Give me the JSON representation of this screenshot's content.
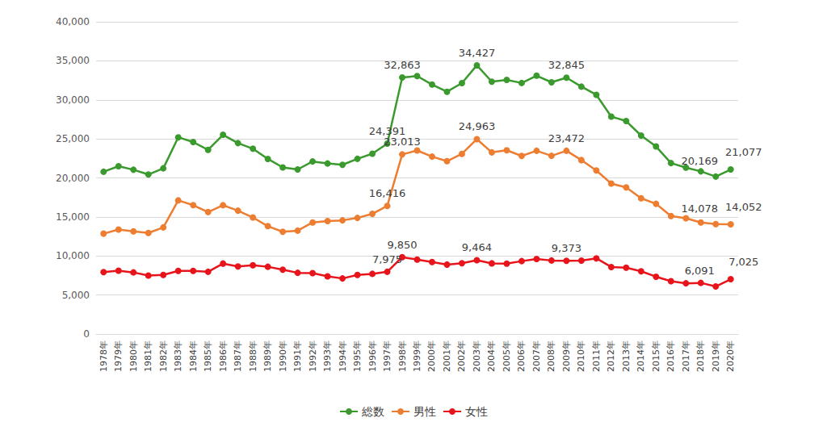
{
  "chart_data": {
    "type": "line",
    "categories": [
      "1978年",
      "1979年",
      "1980年",
      "1981年",
      "1982年",
      "1983年",
      "1984年",
      "1985年",
      "1986年",
      "1987年",
      "1988年",
      "1989年",
      "1990年",
      "1991年",
      "1992年",
      "1993年",
      "1994年",
      "1995年",
      "1996年",
      "1997年",
      "1998年",
      "1999年",
      "2000年",
      "2001年",
      "2002年",
      "2003年",
      "2004年",
      "2005年",
      "2006年",
      "2007年",
      "2008年",
      "2009年",
      "2010年",
      "2011年",
      "2012年",
      "2013年",
      "2014年",
      "2015年",
      "2016年",
      "2017年",
      "2018年",
      "2019年",
      "2020年"
    ],
    "series": [
      {
        "name": "総数",
        "color": "#3a9a2e",
        "values": [
          20788,
          21503,
          21048,
          20434,
          21228,
          25202,
          24596,
          23599,
          25524,
          24460,
          23742,
          22436,
          21346,
          21084,
          22104,
          21851,
          21679,
          22445,
          23104,
          24391,
          32863,
          33048,
          31957,
          31042,
          32143,
          34427,
          32325,
          32552,
          32155,
          33093,
          32249,
          32845,
          31690,
          30651,
          27858,
          27283,
          25427,
          24025,
          21897,
          21321,
          20840,
          20169,
          21077
        ],
        "value_labels": [
          null,
          null,
          null,
          null,
          null,
          null,
          null,
          null,
          null,
          null,
          null,
          null,
          null,
          null,
          null,
          null,
          null,
          null,
          null,
          "24,391",
          "32,863",
          null,
          null,
          null,
          null,
          "34,427",
          null,
          null,
          null,
          null,
          null,
          "32,845",
          null,
          null,
          null,
          null,
          null,
          null,
          null,
          null,
          null,
          "20,169",
          "21,077"
        ]
      },
      {
        "name": "男性",
        "color": "#ed7d31",
        "values": [
          12859,
          13386,
          13155,
          12942,
          13654,
          17116,
          16508,
          15624,
          16497,
          15802,
          14934,
          13818,
          13102,
          13242,
          14296,
          14468,
          14560,
          14874,
          15393,
          16416,
          23013,
          23512,
          22727,
          22144,
          23080,
          24963,
          23272,
          23540,
          22813,
          23478,
          22831,
          23472,
          22283,
          20955,
          19273,
          18787,
          17386,
          16681,
          15121,
          14826,
          14290,
          14078,
          14052
        ],
        "value_labels": [
          null,
          null,
          null,
          null,
          null,
          null,
          null,
          null,
          null,
          null,
          null,
          null,
          null,
          null,
          null,
          null,
          null,
          null,
          null,
          "16,416",
          "23,013",
          null,
          null,
          null,
          null,
          "24,963",
          null,
          null,
          null,
          null,
          null,
          "23,472",
          null,
          null,
          null,
          null,
          null,
          null,
          null,
          null,
          null,
          "14,078",
          "14,052"
        ]
      },
      {
        "name": "女性",
        "color": "#e8141b",
        "values": [
          7929,
          8117,
          7893,
          7492,
          7574,
          8086,
          8088,
          7975,
          9027,
          8658,
          8808,
          8618,
          8244,
          7842,
          7808,
          7383,
          7119,
          7571,
          7711,
          7975,
          9850,
          9536,
          9230,
          8898,
          9063,
          9464,
          9053,
          9012,
          9342,
          9615,
          9418,
          9373,
          9407,
          9696,
          8585,
          8496,
          8041,
          7344,
          6776,
          6495,
          6550,
          6091,
          7025
        ],
        "value_labels": [
          null,
          null,
          null,
          null,
          null,
          null,
          null,
          null,
          null,
          null,
          null,
          null,
          null,
          null,
          null,
          null,
          null,
          null,
          null,
          "7,975",
          "9,850",
          null,
          null,
          null,
          null,
          "9,464",
          null,
          null,
          null,
          null,
          null,
          "9,373",
          null,
          null,
          null,
          null,
          null,
          null,
          null,
          null,
          null,
          "6,091",
          "7,025"
        ]
      }
    ],
    "ylim": [
      0,
      40000
    ],
    "yticks": [
      0,
      {
        "value": 5000,
        "label": "5,000"
      },
      {
        "value": 10000,
        "label": "10,000"
      },
      {
        "value": 15000,
        "label": "15,000"
      },
      {
        "value": 20000,
        "label": "20,000"
      },
      {
        "value": 25000,
        "label": "25,000"
      },
      {
        "value": 30000,
        "label": "30,000"
      },
      {
        "value": 35000,
        "label": "35,000"
      },
      {
        "value": 40000,
        "label": "40,000"
      }
    ],
    "grid": true,
    "legend": "bottom",
    "data_labels": true,
    "marker": "circle"
  }
}
